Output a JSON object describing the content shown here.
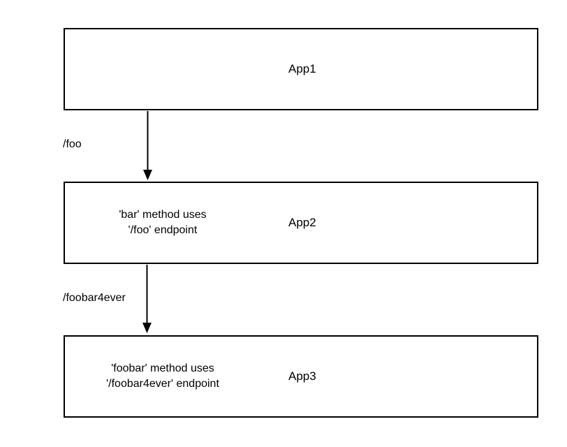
{
  "nodes": {
    "app1": {
      "label": "App1"
    },
    "app2": {
      "label": "App2",
      "note_line1": "'bar' method uses",
      "note_line2": "'/foo' endpoint"
    },
    "app3": {
      "label": "App3",
      "note_line1": "'foobar' method uses",
      "note_line2": "'/foobar4ever' endpoint"
    }
  },
  "edges": [
    {
      "from": "App1",
      "to": "App2",
      "label": "/foo"
    },
    {
      "from": "App2",
      "to": "App3",
      "label": "/foobar4ever"
    }
  ]
}
